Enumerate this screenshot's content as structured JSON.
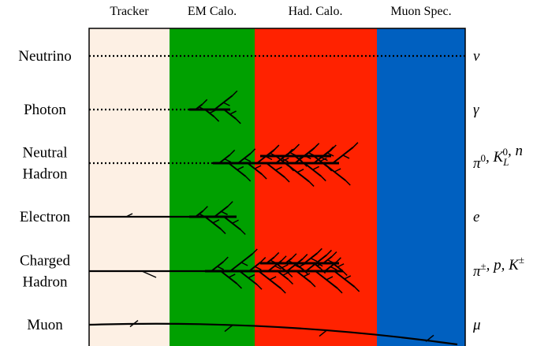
{
  "columns": [
    "Tracker",
    "EM Calo.",
    "Had. Calo.",
    "Muon Spec."
  ],
  "rows": [
    {
      "label": [
        "Neutrino"
      ],
      "symbol": [
        {
          "text": "ν"
        }
      ]
    },
    {
      "label": [
        "Photon"
      ],
      "symbol": [
        {
          "text": "γ"
        }
      ]
    },
    {
      "label": [
        "Neutral",
        "Hadron"
      ],
      "symbol": [
        {
          "text": "π",
          "sup": "0"
        },
        {
          "text": ", K",
          "sub": "L",
          "sup": "0"
        },
        {
          "text": ", n"
        }
      ]
    },
    {
      "label": [
        "Electron"
      ],
      "symbol": [
        {
          "text": "e"
        }
      ]
    },
    {
      "label": [
        "Charged",
        "Hadron"
      ],
      "symbol": [
        {
          "text": "π",
          "sup": "±"
        },
        {
          "text": ", p, K",
          "sup": "±"
        }
      ]
    },
    {
      "label": [
        "Muon"
      ],
      "symbol": [
        {
          "text": "μ"
        }
      ]
    }
  ]
}
